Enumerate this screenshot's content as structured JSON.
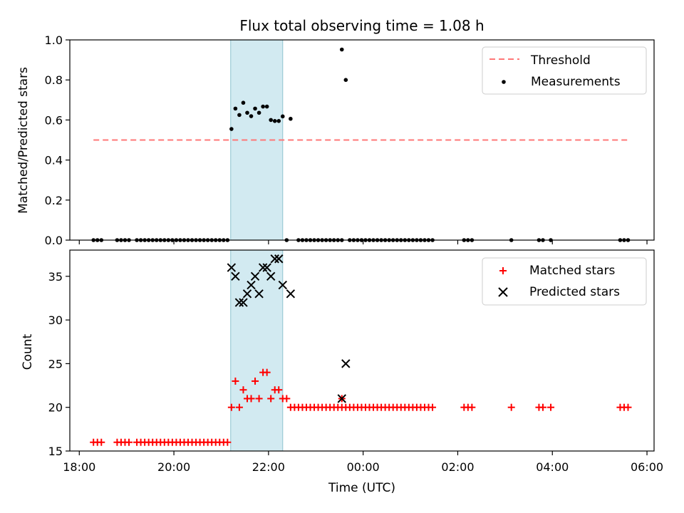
{
  "title": "Flux total observing time = 1.08 h",
  "colors": {
    "threshold": "#ff7777",
    "measurement": "#000000",
    "matched": "#ff0000",
    "predicted": "#000000",
    "highlight": "#add8e6"
  },
  "chart_data": [
    {
      "type": "scatter",
      "ylabel": "Matched/Predicted stars",
      "xlabel": "",
      "ylim": [
        0,
        1.0
      ],
      "yticks": [
        "0.0",
        "0.2",
        "0.4",
        "0.6",
        "0.8",
        "1.0"
      ],
      "ytick_values": [
        0,
        0.2,
        0.4,
        0.6,
        0.8,
        1.0
      ],
      "legend": {
        "placement": "top-right",
        "entries": [
          "Threshold",
          "Measurements"
        ]
      },
      "highlight_span": [
        "21:12",
        "22:18"
      ],
      "threshold": {
        "name": "Threshold",
        "y": 0.5,
        "x_range": [
          "18:18",
          "05:36"
        ]
      },
      "series": [
        {
          "name": "Measurements",
          "points": [
            [
              "18:18",
              0
            ],
            [
              "18:23",
              0
            ],
            [
              "18:28",
              0
            ],
            [
              "18:48",
              0
            ],
            [
              "18:53",
              0
            ],
            [
              "18:58",
              0
            ],
            [
              "19:03",
              0
            ],
            [
              "19:13",
              0
            ],
            [
              "19:18",
              0
            ],
            [
              "19:23",
              0
            ],
            [
              "19:28",
              0
            ],
            [
              "19:33",
              0
            ],
            [
              "19:38",
              0
            ],
            [
              "19:43",
              0
            ],
            [
              "19:48",
              0
            ],
            [
              "19:53",
              0
            ],
            [
              "19:58",
              0
            ],
            [
              "20:03",
              0
            ],
            [
              "20:08",
              0
            ],
            [
              "20:13",
              0
            ],
            [
              "20:18",
              0
            ],
            [
              "20:23",
              0
            ],
            [
              "20:28",
              0
            ],
            [
              "20:33",
              0
            ],
            [
              "20:38",
              0
            ],
            [
              "20:43",
              0
            ],
            [
              "20:48",
              0
            ],
            [
              "20:53",
              0
            ],
            [
              "20:58",
              0
            ],
            [
              "21:03",
              0
            ],
            [
              "21:08",
              0
            ],
            [
              "21:13",
              0.555
            ],
            [
              "21:18",
              0.657
            ],
            [
              "21:23",
              0.625
            ],
            [
              "21:28",
              0.686
            ],
            [
              "21:33",
              0.636
            ],
            [
              "21:38",
              0.619
            ],
            [
              "21:43",
              0.657
            ],
            [
              "21:48",
              0.636
            ],
            [
              "21:53",
              0.667
            ],
            [
              "21:58",
              0.667
            ],
            [
              "22:03",
              0.6
            ],
            [
              "22:08",
              0.595
            ],
            [
              "22:13",
              0.595
            ],
            [
              "22:18",
              0.618
            ],
            [
              "22:23",
              0
            ],
            [
              "22:28",
              0.606
            ],
            [
              "22:38",
              0
            ],
            [
              "22:43",
              0
            ],
            [
              "22:48",
              0
            ],
            [
              "22:53",
              0
            ],
            [
              "22:58",
              0
            ],
            [
              "23:03",
              0
            ],
            [
              "23:08",
              0
            ],
            [
              "23:13",
              0
            ],
            [
              "23:18",
              0
            ],
            [
              "23:23",
              0
            ],
            [
              "23:28",
              0
            ],
            [
              "23:33",
              0
            ],
            [
              "23:33",
              0.952
            ],
            [
              "23:38",
              0.8
            ],
            [
              "23:43",
              0
            ],
            [
              "23:48",
              0
            ],
            [
              "23:53",
              0
            ],
            [
              "23:58",
              0
            ],
            [
              "00:03",
              0
            ],
            [
              "00:08",
              0
            ],
            [
              "00:13",
              0
            ],
            [
              "00:18",
              0
            ],
            [
              "00:23",
              0
            ],
            [
              "00:28",
              0
            ],
            [
              "00:33",
              0
            ],
            [
              "00:38",
              0
            ],
            [
              "00:43",
              0
            ],
            [
              "00:48",
              0
            ],
            [
              "00:53",
              0
            ],
            [
              "00:58",
              0
            ],
            [
              "01:03",
              0
            ],
            [
              "01:08",
              0
            ],
            [
              "01:13",
              0
            ],
            [
              "01:18",
              0
            ],
            [
              "01:23",
              0
            ],
            [
              "01:28",
              0
            ],
            [
              "02:08",
              0
            ],
            [
              "02:13",
              0
            ],
            [
              "02:18",
              0
            ],
            [
              "03:08",
              0
            ],
            [
              "03:43",
              0
            ],
            [
              "03:48",
              0
            ],
            [
              "03:58",
              0
            ],
            [
              "05:26",
              0
            ],
            [
              "05:31",
              0
            ],
            [
              "05:36",
              0
            ]
          ]
        }
      ]
    },
    {
      "type": "scatter",
      "ylabel": "Count",
      "xlabel": "Time (UTC)",
      "ylim": [
        15,
        38
      ],
      "yticks": [
        "15",
        "20",
        "25",
        "30",
        "35"
      ],
      "ytick_values": [
        15,
        20,
        25,
        30,
        35
      ],
      "xticks": [
        "18:00",
        "20:00",
        "22:00",
        "00:00",
        "02:00",
        "04:00",
        "06:00"
      ],
      "xlim": [
        "17:48",
        "06:09"
      ],
      "legend": {
        "placement": "top-right",
        "entries": [
          "Matched stars",
          "Predicted stars"
        ]
      },
      "highlight_span": [
        "21:12",
        "22:18"
      ],
      "series": [
        {
          "name": "Matched stars",
          "marker": "+",
          "points": [
            [
              "18:18",
              16
            ],
            [
              "18:23",
              16
            ],
            [
              "18:28",
              16
            ],
            [
              "18:48",
              16
            ],
            [
              "18:53",
              16
            ],
            [
              "18:58",
              16
            ],
            [
              "19:03",
              16
            ],
            [
              "19:13",
              16
            ],
            [
              "19:18",
              16
            ],
            [
              "19:23",
              16
            ],
            [
              "19:28",
              16
            ],
            [
              "19:33",
              16
            ],
            [
              "19:38",
              16
            ],
            [
              "19:43",
              16
            ],
            [
              "19:48",
              16
            ],
            [
              "19:53",
              16
            ],
            [
              "19:58",
              16
            ],
            [
              "20:03",
              16
            ],
            [
              "20:08",
              16
            ],
            [
              "20:13",
              16
            ],
            [
              "20:18",
              16
            ],
            [
              "20:23",
              16
            ],
            [
              "20:28",
              16
            ],
            [
              "20:33",
              16
            ],
            [
              "20:38",
              16
            ],
            [
              "20:43",
              16
            ],
            [
              "20:48",
              16
            ],
            [
              "20:53",
              16
            ],
            [
              "20:58",
              16
            ],
            [
              "21:03",
              16
            ],
            [
              "21:08",
              16
            ],
            [
              "21:13",
              20
            ],
            [
              "21:18",
              23
            ],
            [
              "21:23",
              20
            ],
            [
              "21:28",
              22
            ],
            [
              "21:33",
              21
            ],
            [
              "21:38",
              21
            ],
            [
              "21:43",
              23
            ],
            [
              "21:48",
              21
            ],
            [
              "21:53",
              24
            ],
            [
              "21:58",
              24
            ],
            [
              "22:03",
              21
            ],
            [
              "22:08",
              22
            ],
            [
              "22:13",
              22
            ],
            [
              "22:18",
              21
            ],
            [
              "22:23",
              21
            ],
            [
              "22:28",
              20
            ],
            [
              "22:33",
              20
            ],
            [
              "22:38",
              20
            ],
            [
              "22:43",
              20
            ],
            [
              "22:48",
              20
            ],
            [
              "22:53",
              20
            ],
            [
              "22:58",
              20
            ],
            [
              "23:03",
              20
            ],
            [
              "23:08",
              20
            ],
            [
              "23:13",
              20
            ],
            [
              "23:18",
              20
            ],
            [
              "23:23",
              20
            ],
            [
              "23:28",
              20
            ],
            [
              "23:33",
              20
            ],
            [
              "23:33",
              21
            ],
            [
              "23:38",
              20
            ],
            [
              "23:43",
              20
            ],
            [
              "23:48",
              20
            ],
            [
              "23:53",
              20
            ],
            [
              "23:58",
              20
            ],
            [
              "00:03",
              20
            ],
            [
              "00:08",
              20
            ],
            [
              "00:13",
              20
            ],
            [
              "00:18",
              20
            ],
            [
              "00:23",
              20
            ],
            [
              "00:28",
              20
            ],
            [
              "00:33",
              20
            ],
            [
              "00:38",
              20
            ],
            [
              "00:43",
              20
            ],
            [
              "00:48",
              20
            ],
            [
              "00:53",
              20
            ],
            [
              "00:58",
              20
            ],
            [
              "01:03",
              20
            ],
            [
              "01:08",
              20
            ],
            [
              "01:13",
              20
            ],
            [
              "01:18",
              20
            ],
            [
              "01:23",
              20
            ],
            [
              "01:28",
              20
            ],
            [
              "02:08",
              20
            ],
            [
              "02:13",
              20
            ],
            [
              "02:18",
              20
            ],
            [
              "03:08",
              20
            ],
            [
              "03:43",
              20
            ],
            [
              "03:48",
              20
            ],
            [
              "03:58",
              20
            ],
            [
              "05:26",
              20
            ],
            [
              "05:31",
              20
            ],
            [
              "05:36",
              20
            ]
          ]
        },
        {
          "name": "Predicted stars",
          "marker": "x",
          "points": [
            [
              "21:13",
              36
            ],
            [
              "21:18",
              35
            ],
            [
              "21:23",
              32
            ],
            [
              "21:28",
              32
            ],
            [
              "21:33",
              33
            ],
            [
              "21:38",
              34
            ],
            [
              "21:43",
              35
            ],
            [
              "21:48",
              33
            ],
            [
              "21:53",
              36
            ],
            [
              "21:58",
              36
            ],
            [
              "22:03",
              35
            ],
            [
              "22:08",
              37
            ],
            [
              "22:13",
              37
            ],
            [
              "22:18",
              34
            ],
            [
              "22:28",
              33
            ],
            [
              "23:33",
              21
            ],
            [
              "23:38",
              25
            ]
          ]
        }
      ]
    }
  ]
}
